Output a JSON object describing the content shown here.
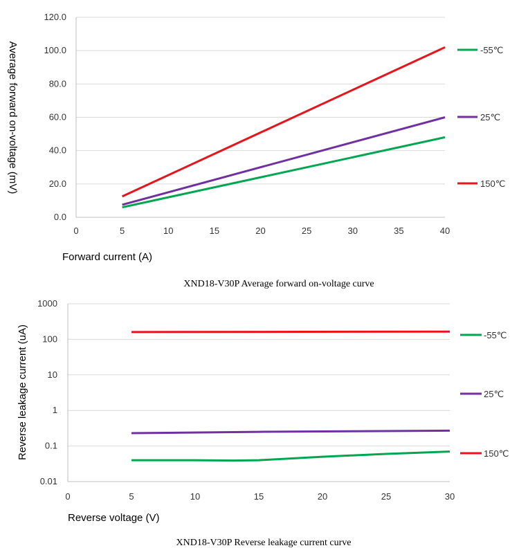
{
  "chart_data": [
    {
      "type": "line",
      "title": "XND18-V30P Average forward on-voltage curve",
      "xlabel": "Forward current (A)",
      "ylabel": "Average forward on-voltage (mV)",
      "xlim": [
        0,
        40
      ],
      "ylim": [
        0,
        120
      ],
      "x_ticks": [
        "0",
        "5",
        "10",
        "15",
        "20",
        "25",
        "30",
        "35",
        "40"
      ],
      "y_ticks": [
        "0.0",
        "20.0",
        "40.0",
        "60.0",
        "80.0",
        "100.0",
        "120.0"
      ],
      "grid": true,
      "legend_position": "right",
      "series": [
        {
          "name": "-55℃",
          "color": "#00a650",
          "x": [
            5,
            40
          ],
          "values": [
            6,
            48
          ]
        },
        {
          "name": "25℃",
          "color": "#7030a0",
          "x": [
            5,
            40
          ],
          "values": [
            7.5,
            60
          ]
        },
        {
          "name": "150℃",
          "color": "#e8141b",
          "x": [
            5,
            40
          ],
          "values": [
            12.5,
            102
          ]
        }
      ]
    },
    {
      "type": "line",
      "title": "XND18-V30P Reverse leakage current curve",
      "xlabel": "Reverse voltage (V)",
      "ylabel": "Reverse leakage current (uA)",
      "xlim": [
        0,
        30
      ],
      "ylim": [
        0.01,
        1000
      ],
      "yscale": "log",
      "x_ticks": [
        "0",
        "5",
        "10",
        "15",
        "20",
        "25",
        "30"
      ],
      "y_ticks": [
        "0.01",
        "0.1",
        "1",
        "10",
        "100",
        "1000"
      ],
      "grid": true,
      "legend_position": "right",
      "series": [
        {
          "name": "-55℃",
          "color": "#00a650",
          "x": [
            5,
            10,
            13,
            15,
            20,
            25,
            30
          ],
          "values": [
            0.04,
            0.04,
            0.039,
            0.04,
            0.05,
            0.06,
            0.07
          ]
        },
        {
          "name": "25℃",
          "color": "#7030a0",
          "x": [
            5,
            15,
            30
          ],
          "values": [
            0.23,
            0.25,
            0.27
          ]
        },
        {
          "name": "150℃",
          "color": "#e8141b",
          "x": [
            5,
            15,
            30
          ],
          "values": [
            160,
            162,
            165
          ]
        }
      ]
    }
  ]
}
